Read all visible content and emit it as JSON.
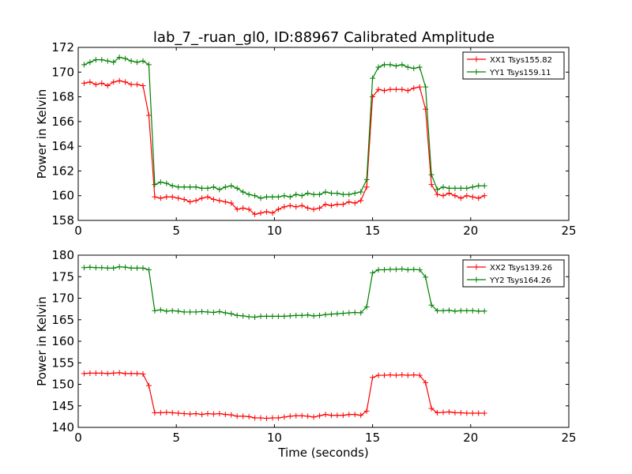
{
  "figure": {
    "title": "lab_7_-ruan_gl0, ID:88967 Calibrated Amplitude"
  },
  "chart_data": [
    {
      "type": "line",
      "title": "lab_7_-ruan_gl0, ID:88967 Calibrated Amplitude",
      "xlabel": "",
      "ylabel": "Power in Kelvin",
      "xlim": [
        0,
        25
      ],
      "ylim": [
        158,
        172
      ],
      "xticks": [
        0,
        5,
        10,
        15,
        20,
        25
      ],
      "yticks": [
        158,
        160,
        162,
        164,
        166,
        168,
        170,
        172
      ],
      "grid": false,
      "legend": "top-right",
      "x": [
        0.3,
        0.6,
        0.9,
        1.2,
        1.5,
        1.8,
        2.1,
        2.4,
        2.7,
        3.0,
        3.3,
        3.6,
        3.9,
        4.2,
        4.5,
        4.8,
        5.1,
        5.4,
        5.7,
        6.0,
        6.3,
        6.6,
        6.9,
        7.2,
        7.5,
        7.8,
        8.1,
        8.4,
        8.7,
        9.0,
        9.3,
        9.6,
        9.9,
        10.2,
        10.5,
        10.8,
        11.1,
        11.4,
        11.7,
        12.0,
        12.3,
        12.6,
        12.9,
        13.2,
        13.5,
        13.8,
        14.1,
        14.4,
        14.7,
        15.0,
        15.3,
        15.6,
        15.9,
        16.2,
        16.5,
        16.8,
        17.1,
        17.4,
        17.7,
        18.0,
        18.3,
        18.6,
        18.9,
        19.2,
        19.5,
        19.8,
        20.1,
        20.4,
        20.7
      ],
      "series": [
        {
          "name": "XX1 Tsys155.82",
          "color": "#ff0000",
          "values": [
            169.1,
            169.2,
            169.0,
            169.1,
            168.9,
            169.2,
            169.3,
            169.2,
            169.0,
            169.0,
            168.9,
            166.5,
            159.9,
            159.8,
            159.9,
            159.9,
            159.8,
            159.7,
            159.5,
            159.6,
            159.8,
            159.9,
            159.7,
            159.6,
            159.5,
            159.4,
            158.9,
            159.0,
            158.9,
            158.5,
            158.6,
            158.7,
            158.6,
            158.9,
            159.1,
            159.2,
            159.1,
            159.2,
            159.0,
            158.9,
            159.0,
            159.3,
            159.2,
            159.3,
            159.3,
            159.5,
            159.4,
            159.6,
            160.7,
            168.0,
            168.6,
            168.5,
            168.6,
            168.6,
            168.6,
            168.5,
            168.7,
            168.8,
            167.0,
            160.9,
            160.1,
            160.0,
            160.2,
            160.0,
            159.8,
            160.0,
            159.9,
            159.8,
            160.0
          ]
        },
        {
          "name": "YY1 Tsys159.11",
          "color": "#008000",
          "values": [
            170.6,
            170.8,
            171.0,
            171.0,
            170.9,
            170.8,
            171.2,
            171.1,
            170.9,
            170.8,
            170.9,
            170.6,
            160.9,
            161.1,
            161.0,
            160.8,
            160.7,
            160.7,
            160.7,
            160.7,
            160.6,
            160.6,
            160.7,
            160.5,
            160.7,
            160.8,
            160.6,
            160.3,
            160.1,
            160.0,
            159.8,
            159.9,
            159.9,
            159.9,
            160.0,
            159.9,
            160.1,
            160.0,
            160.2,
            160.1,
            160.1,
            160.3,
            160.2,
            160.2,
            160.1,
            160.1,
            160.2,
            160.3,
            161.3,
            169.5,
            170.4,
            170.6,
            170.6,
            170.5,
            170.6,
            170.4,
            170.3,
            170.4,
            168.8,
            161.7,
            160.5,
            160.7,
            160.6,
            160.6,
            160.6,
            160.6,
            160.7,
            160.8,
            160.8
          ]
        }
      ]
    },
    {
      "type": "line",
      "title": "",
      "xlabel": "Time (seconds)",
      "ylabel": "Power in Kelvin",
      "xlim": [
        0,
        25
      ],
      "ylim": [
        140,
        180
      ],
      "xticks": [
        0,
        5,
        10,
        15,
        20,
        25
      ],
      "yticks": [
        140,
        145,
        150,
        155,
        160,
        165,
        170,
        175,
        180
      ],
      "grid": false,
      "legend": "top-right",
      "x": [
        0.3,
        0.6,
        0.9,
        1.2,
        1.5,
        1.8,
        2.1,
        2.4,
        2.7,
        3.0,
        3.3,
        3.6,
        3.9,
        4.2,
        4.5,
        4.8,
        5.1,
        5.4,
        5.7,
        6.0,
        6.3,
        6.6,
        6.9,
        7.2,
        7.5,
        7.8,
        8.1,
        8.4,
        8.7,
        9.0,
        9.3,
        9.6,
        9.9,
        10.2,
        10.5,
        10.8,
        11.1,
        11.4,
        11.7,
        12.0,
        12.3,
        12.6,
        12.9,
        13.2,
        13.5,
        13.8,
        14.1,
        14.4,
        14.7,
        15.0,
        15.3,
        15.6,
        15.9,
        16.2,
        16.5,
        16.8,
        17.1,
        17.4,
        17.7,
        18.0,
        18.3,
        18.6,
        18.9,
        19.2,
        19.5,
        19.8,
        20.1,
        20.4,
        20.7
      ],
      "series": [
        {
          "name": "XX2 Tsys139.26",
          "color": "#ff0000",
          "values": [
            152.5,
            152.6,
            152.6,
            152.6,
            152.5,
            152.6,
            152.7,
            152.5,
            152.5,
            152.5,
            152.4,
            149.7,
            143.4,
            143.4,
            143.5,
            143.4,
            143.3,
            143.2,
            143.1,
            143.2,
            143.0,
            143.2,
            143.1,
            143.2,
            143.0,
            142.9,
            142.6,
            142.6,
            142.5,
            142.2,
            142.2,
            142.1,
            142.2,
            142.2,
            142.4,
            142.6,
            142.7,
            142.7,
            142.6,
            142.4,
            142.7,
            143.0,
            142.8,
            142.8,
            142.8,
            143.0,
            143.0,
            142.8,
            143.8,
            151.6,
            152.1,
            152.1,
            152.2,
            152.1,
            152.2,
            152.1,
            152.2,
            152.1,
            150.4,
            144.4,
            143.4,
            143.5,
            143.6,
            143.4,
            143.4,
            143.3,
            143.3,
            143.3,
            143.3
          ]
        },
        {
          "name": "YY2 Tsys164.26",
          "color": "#008000",
          "values": [
            177.1,
            177.2,
            177.1,
            177.1,
            177.0,
            177.0,
            177.3,
            177.2,
            177.0,
            177.0,
            177.0,
            176.6,
            167.1,
            167.3,
            167.0,
            167.1,
            167.0,
            166.8,
            166.8,
            166.8,
            166.9,
            166.8,
            166.7,
            166.9,
            166.6,
            166.4,
            166.0,
            165.9,
            165.7,
            165.6,
            165.8,
            165.8,
            165.8,
            165.8,
            165.8,
            165.9,
            166.0,
            166.0,
            166.1,
            165.9,
            166.0,
            166.2,
            166.3,
            166.4,
            166.5,
            166.6,
            166.7,
            166.6,
            168.0,
            175.9,
            176.6,
            176.6,
            176.7,
            176.7,
            176.8,
            176.6,
            176.7,
            176.6,
            174.9,
            168.4,
            167.1,
            167.1,
            167.2,
            167.0,
            167.1,
            167.1,
            167.1,
            167.0,
            167.0
          ]
        }
      ]
    }
  ]
}
